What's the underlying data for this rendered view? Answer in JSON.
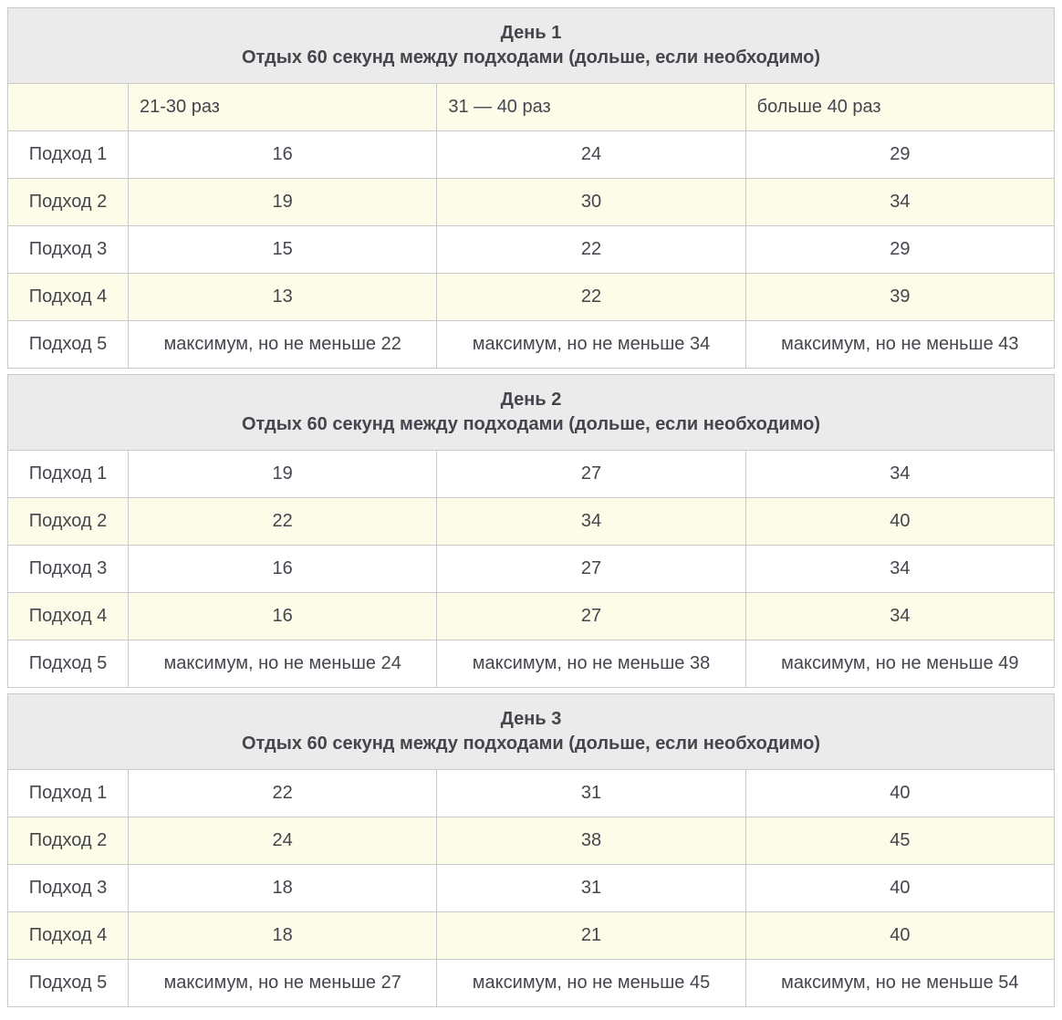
{
  "colors": {
    "day_header_bg": "#ebebeb",
    "stripe_bg": "#fdfce8",
    "border": "#c9c9c9",
    "text": "#45454e"
  },
  "columns": [
    "21-30 раз",
    "31 — 40 раз",
    "больше 40 раз"
  ],
  "tables": [
    {
      "title": "День 1",
      "subtitle": "Отдых 60 секунд между подходами (дольше, если необходимо)",
      "rows": [
        {
          "label": "Подход 1",
          "values": [
            "16",
            "24",
            "29"
          ]
        },
        {
          "label": "Подход 2",
          "values": [
            "19",
            "30",
            "34"
          ]
        },
        {
          "label": "Подход 3",
          "values": [
            "15",
            "22",
            "29"
          ]
        },
        {
          "label": "Подход 4",
          "values": [
            "13",
            "22",
            "39"
          ]
        },
        {
          "label": "Подход 5",
          "values": [
            "максимум, но не меньше 22",
            "максимум, но не меньше 34",
            "максимум, но не меньше 43"
          ]
        }
      ]
    },
    {
      "title": "День 2",
      "subtitle": "Отдых 60 секунд между подходами (дольше, если необходимо)",
      "rows": [
        {
          "label": "Подход 1",
          "values": [
            "19",
            "27",
            "34"
          ]
        },
        {
          "label": "Подход 2",
          "values": [
            "22",
            "34",
            "40"
          ]
        },
        {
          "label": "Подход 3",
          "values": [
            "16",
            "27",
            "34"
          ]
        },
        {
          "label": "Подход 4",
          "values": [
            "16",
            "27",
            "34"
          ]
        },
        {
          "label": "Подход 5",
          "values": [
            "максимум, но не меньше 24",
            "максимум, но не меньше 38",
            "максимум, но не меньше 49"
          ]
        }
      ]
    },
    {
      "title": "День 3",
      "subtitle": "Отдых 60 секунд между подходами (дольше, если необходимо)",
      "rows": [
        {
          "label": "Подход 1",
          "values": [
            "22",
            "31",
            "40"
          ]
        },
        {
          "label": "Подход 2",
          "values": [
            "24",
            "38",
            "45"
          ]
        },
        {
          "label": "Подход 3",
          "values": [
            "18",
            "31",
            "40"
          ]
        },
        {
          "label": "Подход 4",
          "values": [
            "18",
            "21",
            "40"
          ]
        },
        {
          "label": "Подход 5",
          "values": [
            "максимум, но не меньше 27",
            "максимум, но не меньше 45",
            "максимум, но не меньше 54"
          ]
        }
      ]
    }
  ]
}
